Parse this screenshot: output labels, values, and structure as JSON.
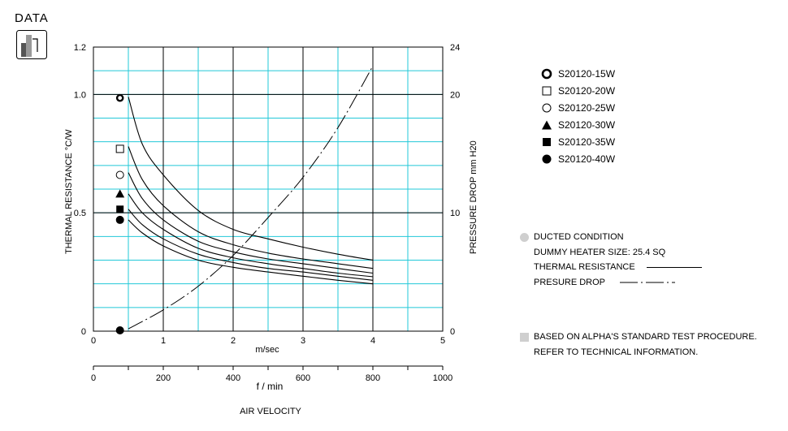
{
  "header": {
    "title": "DATA",
    "icon": "bar-chart-icon"
  },
  "legend": [
    {
      "label": "S20120-15W",
      "marker": "bullseye"
    },
    {
      "label": "S20120-20W",
      "marker": "open-square"
    },
    {
      "label": "S20120-25W",
      "marker": "open-circle"
    },
    {
      "label": "S20120-30W",
      "marker": "filled-triangle"
    },
    {
      "label": "S20120-35W",
      "marker": "filled-square"
    },
    {
      "label": "S20120-40W",
      "marker": "filled-circle"
    }
  ],
  "notes": {
    "condition": "DUCTED CONDITION",
    "heater": "DUMMY HEATER SIZE: 25.4 SQ",
    "thermal": "THERMAL RESISTANCE",
    "pressure": "PRESURE DROP",
    "basis1": "BASED ON ALPHA'S STANDARD TEST PROCEDURE.",
    "basis2": "REFER TO TECHNICAL INFORMATION."
  },
  "chart_data": {
    "type": "line",
    "x_primary": {
      "label": "m/sec",
      "range": [
        0,
        5
      ],
      "ticks": [
        "0",
        "1",
        "2",
        "3",
        "4",
        "5"
      ]
    },
    "x_secondary": {
      "label": "f / min",
      "range": [
        0,
        1000
      ],
      "ticks": [
        "0",
        "200",
        "400",
        "600",
        "800",
        "1000"
      ]
    },
    "x_title": "AIR VELOCITY",
    "y_left": {
      "label": "THERMAL RESISTANCE   °C/W",
      "range": [
        0,
        1.2
      ],
      "ticks": [
        "0",
        "0.5",
        "1.0",
        "1.2"
      ]
    },
    "y_right": {
      "label": "PRESSURE DROP   mm H20",
      "range": [
        0,
        24
      ],
      "ticks": [
        "0",
        "10",
        "20",
        "24"
      ]
    },
    "grid": true,
    "still_air_x": 0.38,
    "series": [
      {
        "name": "S20120-15W",
        "marker": "bullseye",
        "still_air": 0.985,
        "x": [
          0.5,
          0.7,
          1.0,
          1.5,
          2.0,
          2.5,
          3.0,
          3.5,
          4.0
        ],
        "y": [
          0.99,
          0.79,
          0.66,
          0.51,
          0.43,
          0.39,
          0.355,
          0.325,
          0.3
        ]
      },
      {
        "name": "S20120-20W",
        "marker": "open-square",
        "still_air": 0.77,
        "x": [
          0.5,
          0.7,
          1.0,
          1.5,
          2.0,
          2.5,
          3.0,
          3.5,
          4.0
        ],
        "y": [
          0.78,
          0.64,
          0.53,
          0.42,
          0.365,
          0.33,
          0.305,
          0.285,
          0.265
        ]
      },
      {
        "name": "S20120-25W",
        "marker": "open-circle",
        "still_air": 0.66,
        "x": [
          0.5,
          0.7,
          1.0,
          1.5,
          2.0,
          2.5,
          3.0,
          3.5,
          4.0
        ],
        "y": [
          0.67,
          0.56,
          0.47,
          0.38,
          0.335,
          0.305,
          0.285,
          0.265,
          0.245
        ]
      },
      {
        "name": "S20120-30W",
        "marker": "filled-triangle",
        "still_air": 0.58,
        "x": [
          0.5,
          0.7,
          1.0,
          1.5,
          2.0,
          2.5,
          3.0,
          3.5,
          4.0
        ],
        "y": [
          0.58,
          0.5,
          0.43,
          0.35,
          0.31,
          0.285,
          0.265,
          0.245,
          0.23
        ]
      },
      {
        "name": "S20120-35W",
        "marker": "filled-square",
        "still_air": 0.515,
        "x": [
          0.5,
          0.7,
          1.0,
          1.5,
          2.0,
          2.5,
          3.0,
          3.5,
          4.0
        ],
        "y": [
          0.515,
          0.45,
          0.39,
          0.325,
          0.29,
          0.265,
          0.25,
          0.232,
          0.215
        ]
      },
      {
        "name": "S20120-40W",
        "marker": "filled-circle",
        "still_air": 0.47,
        "x": [
          0.5,
          0.7,
          1.0,
          1.5,
          2.0,
          2.5,
          3.0,
          3.5,
          4.0
        ],
        "y": [
          0.47,
          0.415,
          0.36,
          0.3,
          0.27,
          0.25,
          0.232,
          0.215,
          0.2
        ]
      }
    ],
    "pressure_drop": {
      "still_air": 0,
      "x": [
        0.5,
        1.0,
        1.5,
        2.0,
        2.5,
        3.0,
        3.5,
        4.0
      ],
      "y": [
        0.2,
        1.8,
        3.8,
        6.4,
        9.6,
        13.0,
        17.2,
        22.4
      ]
    }
  }
}
